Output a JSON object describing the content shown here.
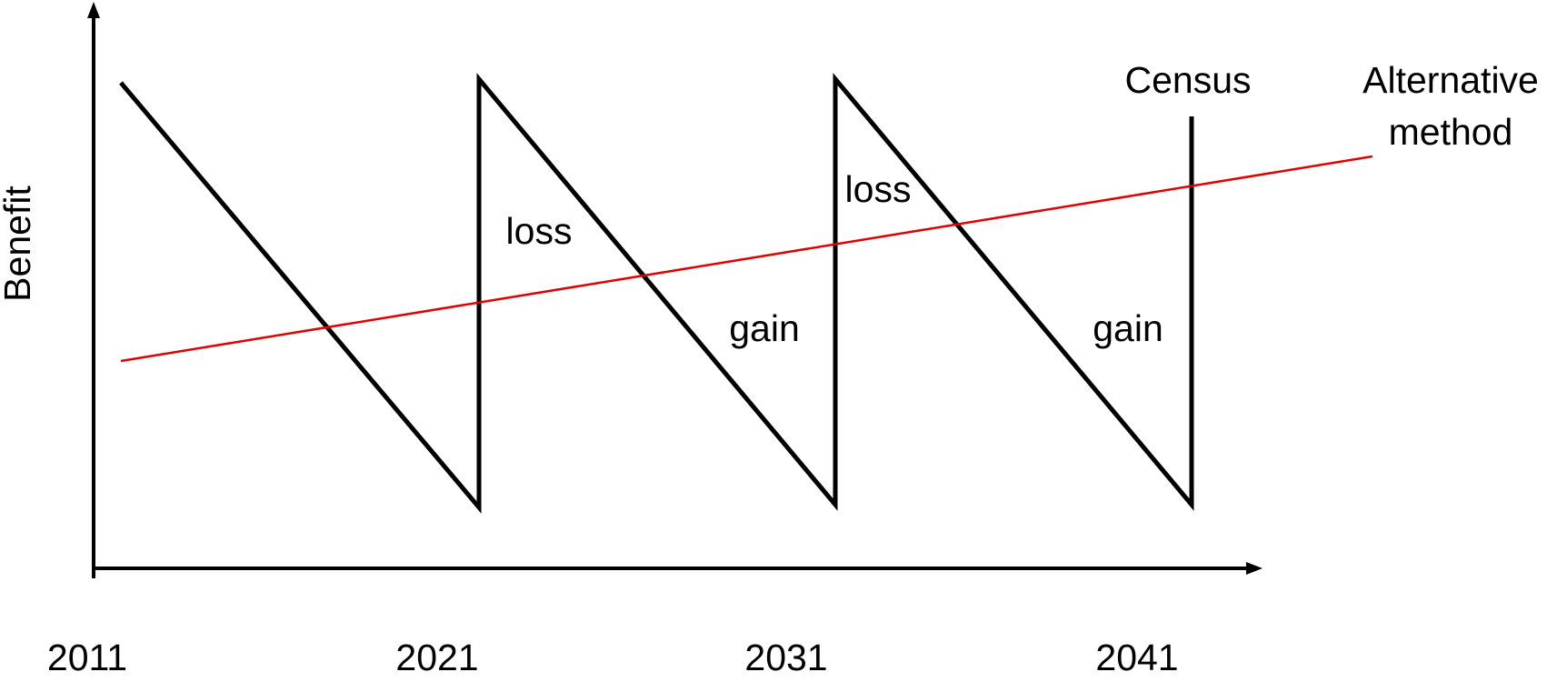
{
  "y_axis_label": "Benefit",
  "x_labels": [
    "2011",
    "2021",
    "2031",
    "2041"
  ],
  "census_label": "Census",
  "alternative_label": [
    "Alternative",
    "method"
  ],
  "region_labels": [
    "loss",
    "loss",
    "gain",
    "gain"
  ]
}
